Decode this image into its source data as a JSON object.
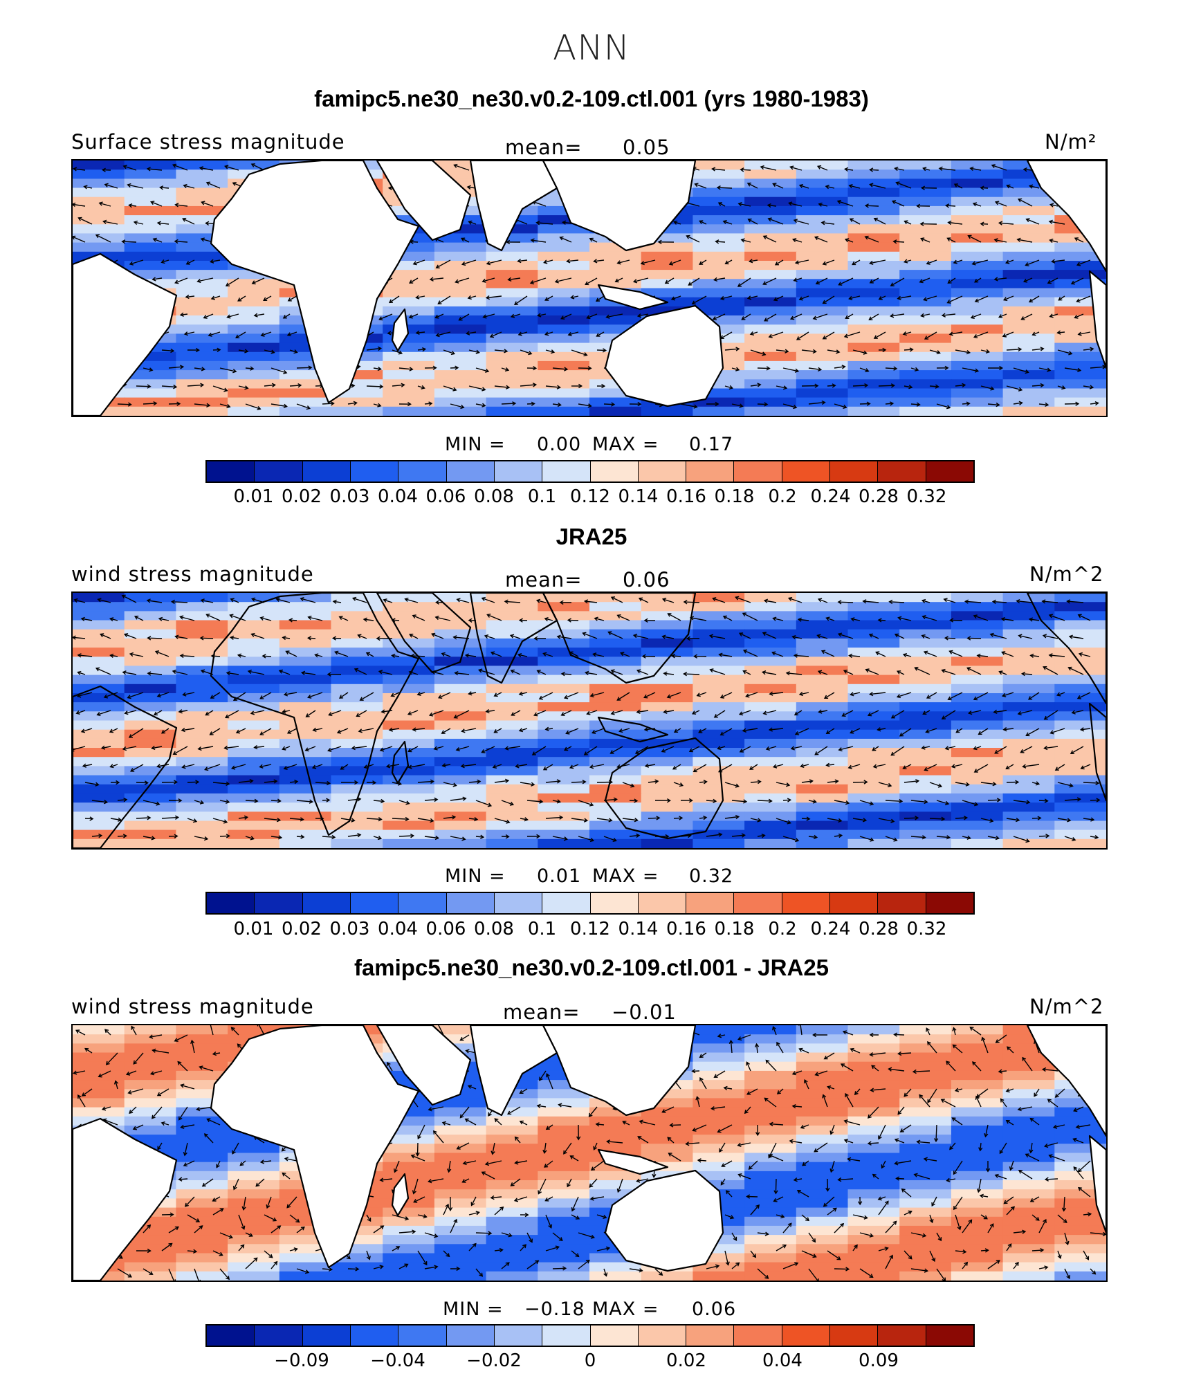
{
  "title": "ANN",
  "panels": [
    {
      "heading": "famipc5.ne30_ne30.v0.2-109.ctl.001 (yrs 1980-1983)",
      "variable": "Surface stress magnitude",
      "mean_label": "mean=",
      "mean_value": "0.05",
      "units": "N/m²",
      "min_label": "MIN =",
      "min_value": "0.00",
      "max_label": "MAX =",
      "max_value": "0.17",
      "ticks": [
        "0.01",
        "0.02",
        "0.03",
        "0.04",
        "0.06",
        "0.08",
        "0.1",
        "0.12",
        "0.14",
        "0.16",
        "0.18",
        "0.2",
        "0.24",
        "0.28",
        "0.32"
      ]
    },
    {
      "heading": "JRA25",
      "variable": "wind stress magnitude",
      "mean_label": "mean=",
      "mean_value": "0.06",
      "units": "N/m^2",
      "min_label": "MIN =",
      "min_value": "0.01",
      "max_label": "MAX =",
      "max_value": "0.32",
      "ticks": [
        "0.01",
        "0.02",
        "0.03",
        "0.04",
        "0.06",
        "0.08",
        "0.1",
        "0.12",
        "0.14",
        "0.16",
        "0.18",
        "0.2",
        "0.24",
        "0.28",
        "0.32"
      ]
    },
    {
      "heading": "famipc5.ne30_ne30.v0.2-109.ctl.001 - JRA25",
      "variable": "wind stress magnitude",
      "mean_label": "mean=",
      "mean_value": "−0.01",
      "units": "N/m^2",
      "min_label": "MIN =",
      "min_value": "−0.18",
      "max_label": "MAX =",
      "max_value": "0.06",
      "ticks": [
        "−0.09",
        "−0.04",
        "−0.02",
        "0",
        "0.02",
        "0.04",
        "0.09"
      ]
    }
  ],
  "colorbar_colors": [
    "#00128f",
    "#0a27b3",
    "#0c3fd4",
    "#1f5ef0",
    "#3f78f2",
    "#7399f2",
    "#a8c1f5",
    "#d5e4f9",
    "#fde5d3",
    "#fbc7aa",
    "#f7a27d",
    "#f47b55",
    "#ee5425",
    "#d73a12",
    "#b8250e",
    "#8b0904"
  ],
  "seq_colors": [
    "#0a27b3",
    "#0c3fd4",
    "#1f5ef0",
    "#3f78f2",
    "#7399f2",
    "#a8c1f5",
    "#d5e4f9",
    "#fbc7aa",
    "#f47b55"
  ],
  "diff_colors": [
    "#1f5ef0",
    "#7399f2",
    "#a8c1f5",
    "#d5e4f9",
    "#fde5d3",
    "#fbc7aa",
    "#f7a27d",
    "#f47b55"
  ]
}
